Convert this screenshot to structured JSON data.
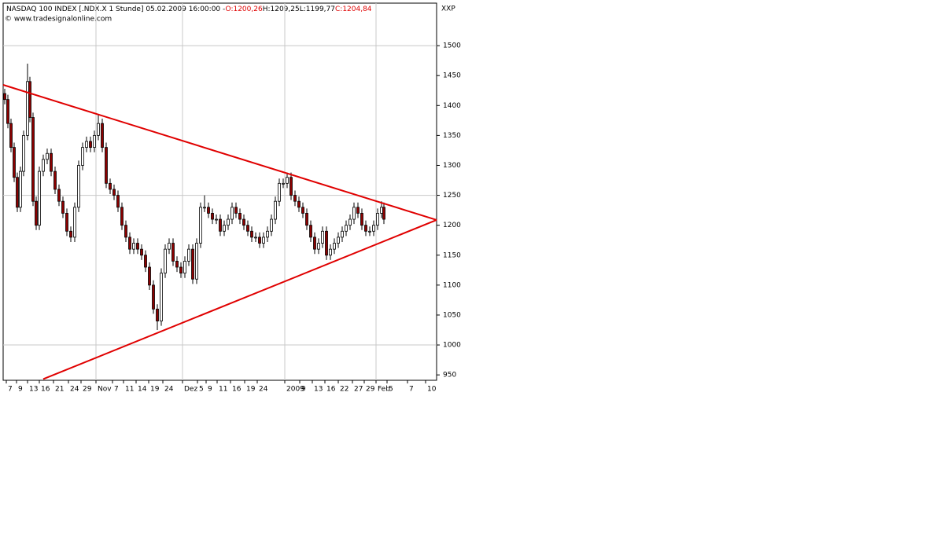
{
  "chart_data": {
    "type": "candlestick",
    "title": "NASDAQ 100 INDEX [.NDX.X  1 Stunde] 05.02.2009 16:00:00 -",
    "ohlc_labels": [
      {
        "text": "O:1200,26",
        "color": "#e00000"
      },
      {
        "text": "H:1209,25",
        "color": "#000000"
      },
      {
        "text": "L:1199,77",
        "color": "#000000"
      },
      {
        "text": "C:1204,84",
        "color": "#e00000"
      }
    ],
    "source": "© www.tradesignalonline.com",
    "y_axis_label": "XXP",
    "up_color": "#ffffff",
    "down_color": "#8b0000",
    "grid": true,
    "xlim": [
      0,
      551
    ],
    "ylim": [
      941,
      1571
    ],
    "yticks": [
      950,
      1000,
      1050,
      1100,
      1150,
      1200,
      1250,
      1300,
      1350,
      1400,
      1450,
      1500
    ],
    "xticks": [
      {
        "value": 4,
        "label": "7"
      },
      {
        "value": 17,
        "label": "9"
      },
      {
        "value": 31,
        "label": "13"
      },
      {
        "value": 46,
        "label": "16"
      },
      {
        "value": 64,
        "label": "21"
      },
      {
        "value": 83,
        "label": "24"
      },
      {
        "value": 99,
        "label": "29"
      },
      {
        "value": 118,
        "label": "Nov"
      },
      {
        "value": 139,
        "label": "7"
      },
      {
        "value": 153,
        "label": "11"
      },
      {
        "value": 169,
        "label": "14"
      },
      {
        "value": 185,
        "label": "19"
      },
      {
        "value": 203,
        "label": "24"
      },
      {
        "value": 228,
        "label": "Dez"
      },
      {
        "value": 247,
        "label": "5"
      },
      {
        "value": 258,
        "label": "9"
      },
      {
        "value": 272,
        "label": "11"
      },
      {
        "value": 289,
        "label": "16"
      },
      {
        "value": 307,
        "label": "19"
      },
      {
        "value": 323,
        "label": "24"
      },
      {
        "value": 358,
        "label": "2009"
      },
      {
        "value": 377,
        "label": "9"
      },
      {
        "value": 393,
        "label": "13"
      },
      {
        "value": 409,
        "label": "16"
      },
      {
        "value": 426,
        "label": "22"
      },
      {
        "value": 444,
        "label": "27"
      },
      {
        "value": 459,
        "label": "29"
      },
      {
        "value": 474,
        "label": "Feb"
      },
      {
        "value": 488,
        "label": "5"
      },
      {
        "value": 514,
        "label": "7"
      },
      {
        "value": 537,
        "label": "10"
      }
    ],
    "x": [
      2,
      6,
      10,
      14,
      18,
      22,
      26,
      31,
      34,
      38,
      42,
      46,
      51,
      56,
      61,
      66,
      71,
      76,
      81,
      86,
      91,
      96,
      101,
      106,
      111,
      116,
      121,
      126,
      131,
      136,
      141,
      146,
      151,
      156,
      161,
      166,
      171,
      176,
      181,
      186,
      191,
      196,
      201,
      206,
      211,
      216,
      221,
      226,
      231,
      236,
      241,
      246,
      251,
      256,
      261,
      266,
      271,
      276,
      281,
      286,
      291,
      296,
      301,
      306,
      311,
      316,
      321,
      326,
      331,
      336,
      341,
      346,
      351,
      356,
      361,
      366,
      371,
      376,
      381,
      386,
      391,
      396,
      401,
      406,
      411,
      416,
      421,
      426,
      431,
      436,
      441,
      446,
      451,
      456,
      461,
      466,
      471,
      476,
      481,
      484
    ],
    "open": [
      1420,
      1410,
      1370,
      1330,
      1280,
      1230,
      1290,
      1350,
      1440,
      1380,
      1240,
      1200,
      1290,
      1310,
      1320,
      1290,
      1260,
      1240,
      1220,
      1190,
      1180,
      1230,
      1300,
      1330,
      1340,
      1330,
      1350,
      1370,
      1330,
      1270,
      1260,
      1250,
      1230,
      1200,
      1180,
      1160,
      1170,
      1160,
      1150,
      1130,
      1100,
      1060,
      1040,
      1120,
      1160,
      1170,
      1140,
      1130,
      1120,
      1140,
      1160,
      1110,
      1170,
      1230,
      1230,
      1220,
      1210,
      1210,
      1190,
      1200,
      1210,
      1230,
      1220,
      1210,
      1200,
      1190,
      1180,
      1180,
      1170,
      1180,
      1190,
      1210,
      1240,
      1270,
      1270,
      1280,
      1250,
      1240,
      1230,
      1220,
      1200,
      1180,
      1160,
      1170,
      1190,
      1150,
      1160,
      1170,
      1180,
      1190,
      1200,
      1210,
      1230,
      1220,
      1200,
      1190,
      1190,
      1200,
      1220,
      1230
    ],
    "high": [
      1428,
      1418,
      1378,
      1338,
      1288,
      1298,
      1358,
      1470,
      1448,
      1388,
      1248,
      1298,
      1318,
      1328,
      1328,
      1298,
      1268,
      1248,
      1228,
      1198,
      1238,
      1308,
      1338,
      1348,
      1348,
      1358,
      1385,
      1378,
      1338,
      1278,
      1268,
      1258,
      1238,
      1208,
      1188,
      1178,
      1178,
      1168,
      1158,
      1138,
      1108,
      1068,
      1128,
      1168,
      1178,
      1178,
      1148,
      1138,
      1148,
      1168,
      1168,
      1178,
      1238,
      1250,
      1238,
      1228,
      1218,
      1218,
      1208,
      1218,
      1238,
      1238,
      1228,
      1218,
      1208,
      1198,
      1188,
      1188,
      1188,
      1198,
      1218,
      1248,
      1278,
      1278,
      1288,
      1288,
      1258,
      1248,
      1238,
      1228,
      1208,
      1188,
      1178,
      1198,
      1198,
      1168,
      1178,
      1188,
      1198,
      1208,
      1218,
      1238,
      1238,
      1228,
      1208,
      1198,
      1208,
      1228,
      1240,
      1238
    ],
    "low": [
      1402,
      1362,
      1322,
      1272,
      1222,
      1222,
      1282,
      1342,
      1372,
      1232,
      1192,
      1192,
      1282,
      1302,
      1282,
      1252,
      1232,
      1212,
      1182,
      1172,
      1172,
      1222,
      1292,
      1322,
      1322,
      1322,
      1342,
      1322,
      1262,
      1252,
      1242,
      1222,
      1192,
      1172,
      1152,
      1152,
      1152,
      1142,
      1122,
      1092,
      1052,
      1025,
      1032,
      1112,
      1152,
      1132,
      1122,
      1112,
      1112,
      1132,
      1102,
      1102,
      1162,
      1222,
      1212,
      1202,
      1202,
      1182,
      1182,
      1192,
      1202,
      1212,
      1202,
      1192,
      1182,
      1172,
      1172,
      1162,
      1162,
      1172,
      1182,
      1202,
      1232,
      1262,
      1262,
      1242,
      1232,
      1222,
      1212,
      1192,
      1172,
      1152,
      1152,
      1162,
      1142,
      1142,
      1152,
      1162,
      1172,
      1182,
      1192,
      1202,
      1212,
      1192,
      1182,
      1182,
      1182,
      1192,
      1212,
      1202
    ],
    "close": [
      1410,
      1370,
      1330,
      1280,
      1230,
      1290,
      1350,
      1440,
      1380,
      1240,
      1200,
      1290,
      1310,
      1320,
      1290,
      1260,
      1240,
      1220,
      1190,
      1180,
      1230,
      1300,
      1330,
      1340,
      1330,
      1350,
      1370,
      1330,
      1270,
      1260,
      1250,
      1230,
      1200,
      1180,
      1160,
      1170,
      1160,
      1150,
      1130,
      1100,
      1060,
      1040,
      1120,
      1160,
      1170,
      1140,
      1130,
      1120,
      1140,
      1160,
      1110,
      1170,
      1230,
      1230,
      1220,
      1210,
      1210,
      1190,
      1200,
      1210,
      1230,
      1220,
      1210,
      1200,
      1190,
      1180,
      1180,
      1170,
      1180,
      1190,
      1210,
      1240,
      1270,
      1270,
      1280,
      1250,
      1240,
      1230,
      1220,
      1200,
      1180,
      1160,
      1170,
      1190,
      1150,
      1160,
      1170,
      1180,
      1190,
      1200,
      1210,
      1230,
      1220,
      1200,
      1190,
      1190,
      1200,
      1220,
      1230,
      1210
    ],
    "trendlines": [
      {
        "color": "#e00000",
        "x": [
          0,
          551
        ],
        "y": [
          1434.5,
          1208.8
        ]
      },
      {
        "color": "#e00000",
        "x": [
          51,
          551
        ],
        "y": [
          943,
          1208.8
        ]
      }
    ]
  }
}
